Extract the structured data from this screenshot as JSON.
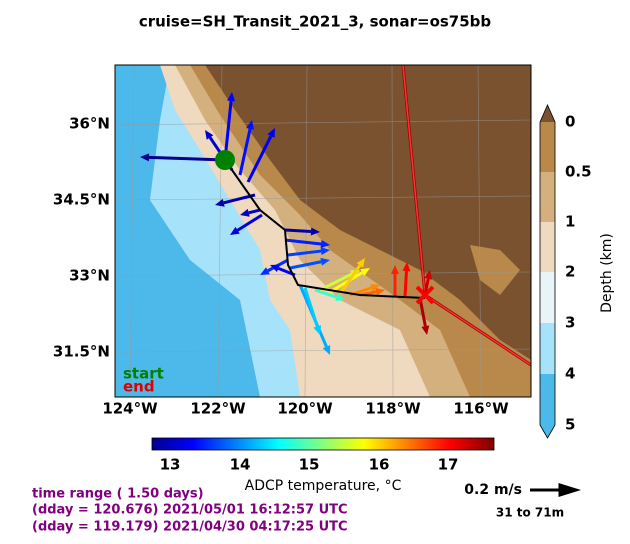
{
  "title": "cruise=SH_Transit_2021_3,   sonar=os75bb",
  "map": {
    "lat_labels": [
      "36°N",
      "34.5°N",
      "33°N",
      "31.5°N"
    ],
    "lon_labels": [
      "124°W",
      "122°W",
      "120°W",
      "118°W",
      "116°W"
    ],
    "legend": {
      "start": "start",
      "end": "end"
    }
  },
  "depth_colorbar": {
    "ticks": [
      "0",
      "0.5",
      "1",
      "2",
      "3",
      "4",
      "5"
    ],
    "label": "Depth (km)"
  },
  "temperature_colorbar": {
    "ticks": [
      "13",
      "14",
      "15",
      "16",
      "17"
    ],
    "label": "ADCP temperature, °C"
  },
  "scale": {
    "speed": "0.2 m/s",
    "depth_range": "31 to 71m"
  },
  "time": {
    "range": "time range ( 1.50 days)",
    "end": "(dday = 120.676) 2021/05/01 16:12:57 UTC",
    "start": "(dday = 119.179) 2021/04/30 04:17:25 UTC"
  }
}
